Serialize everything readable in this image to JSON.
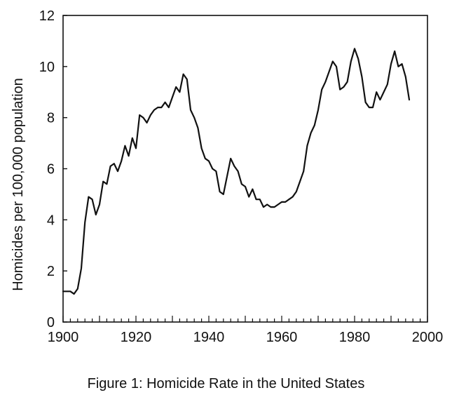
{
  "chart_data": {
    "type": "line",
    "title": "",
    "caption": "Figure 1: Homicide Rate in the United States",
    "xlabel": "",
    "ylabel": "Homicides per 100,000 population",
    "xlim": [
      1900,
      2000
    ],
    "ylim": [
      0,
      12
    ],
    "xticks": [
      "1900",
      "1920",
      "1940",
      "1960",
      "1980",
      "2000"
    ],
    "yticks": [
      "0",
      "2",
      "4",
      "6",
      "8",
      "10",
      "12"
    ],
    "grid": false,
    "legend": "none",
    "line_color": "#111111",
    "series": [
      {
        "x": [
          1900,
          1901,
          1902,
          1903,
          1904,
          1905,
          1906,
          1907,
          1908,
          1909,
          1910,
          1911,
          1912,
          1913,
          1914,
          1915,
          1916,
          1917,
          1918,
          1919,
          1920,
          1921,
          1922,
          1923,
          1924,
          1925,
          1926,
          1927,
          1928,
          1929,
          1930,
          1931,
          1932,
          1933,
          1934,
          1935,
          1936,
          1937,
          1938,
          1939,
          1940,
          1941,
          1942,
          1943,
          1944,
          1945,
          1946,
          1947,
          1948,
          1949,
          1950,
          1951,
          1952,
          1953,
          1954,
          1955,
          1956,
          1957,
          1958,
          1959,
          1960,
          1961,
          1962,
          1963,
          1964,
          1965,
          1966,
          1967,
          1968,
          1969,
          1970,
          1971,
          1972,
          1973,
          1974,
          1975,
          1976,
          1977,
          1978,
          1979,
          1980,
          1981,
          1982,
          1983,
          1984,
          1985,
          1986,
          1987,
          1988,
          1989,
          1990,
          1991,
          1992,
          1993,
          1994,
          1995
        ],
        "y": [
          1.2,
          1.2,
          1.2,
          1.1,
          1.3,
          2.1,
          3.9,
          4.9,
          4.8,
          4.2,
          4.6,
          5.5,
          5.4,
          6.1,
          6.2,
          5.9,
          6.3,
          6.9,
          6.5,
          7.2,
          6.8,
          8.1,
          8.0,
          7.8,
          8.1,
          8.3,
          8.4,
          8.4,
          8.6,
          8.4,
          8.8,
          9.2,
          9.0,
          9.7,
          9.5,
          8.3,
          8.0,
          7.6,
          6.8,
          6.4,
          6.3,
          6.0,
          5.9,
          5.1,
          5.0,
          5.7,
          6.4,
          6.1,
          5.9,
          5.4,
          5.3,
          4.9,
          5.2,
          4.8,
          4.8,
          4.5,
          4.6,
          4.5,
          4.5,
          4.6,
          4.7,
          4.7,
          4.8,
          4.9,
          5.1,
          5.5,
          5.9,
          6.9,
          7.4,
          7.7,
          8.3,
          9.1,
          9.4,
          9.8,
          10.2,
          10.0,
          9.1,
          9.2,
          9.4,
          10.2,
          10.7,
          10.3,
          9.6,
          8.6,
          8.4,
          8.4,
          9.0,
          8.7,
          9.0,
          9.3,
          10.1,
          10.6,
          10.0,
          10.1,
          9.6,
          8.7
        ]
      }
    ]
  }
}
